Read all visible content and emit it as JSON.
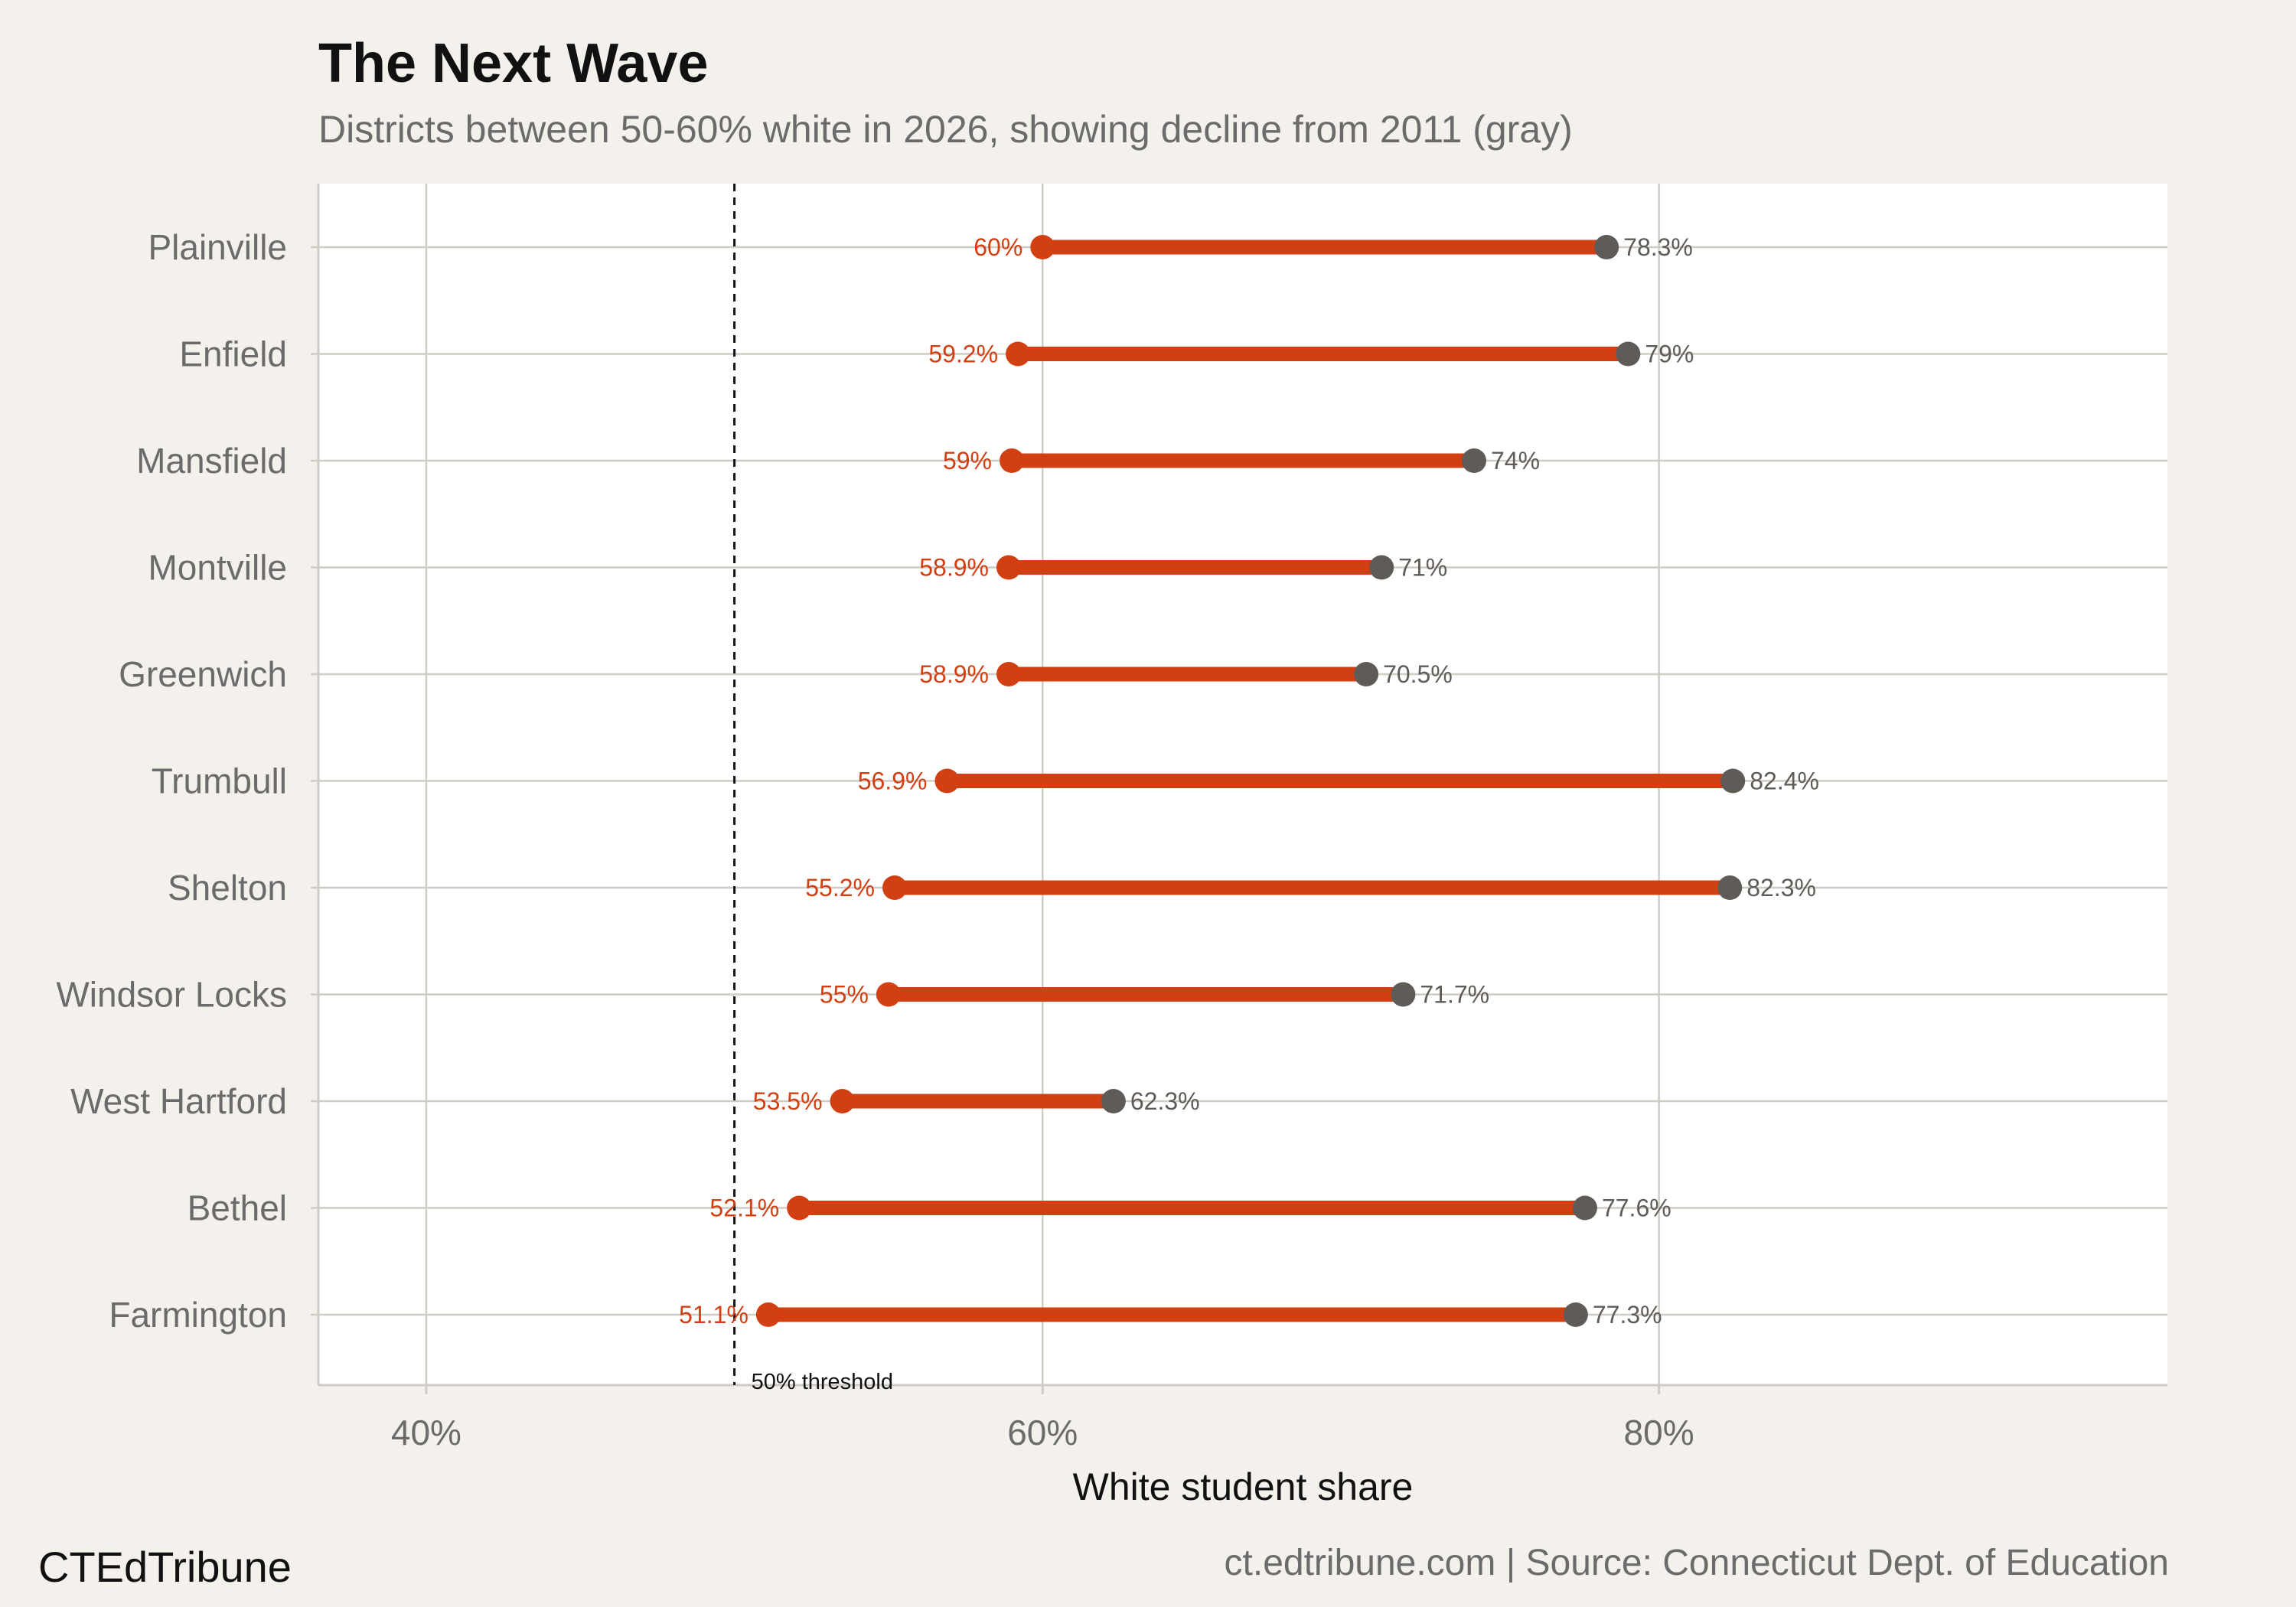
{
  "header": {
    "title": "The Next Wave",
    "subtitle": "Districts between 50-60% white in 2026, showing decline from 2011 (gray)"
  },
  "footer": {
    "brand": "CTEdTribune",
    "source": "ct.edtribune.com | Source: Connecticut Dept. of Education"
  },
  "colors": {
    "background": "#f4f1ec",
    "panel": "#ffffff",
    "value_2026": "#d23f12",
    "value_2011": "#5f5b57",
    "gridline": "#cfccc6"
  },
  "chart_data": {
    "type": "dumbbell",
    "xlabel": "White student share",
    "xlim": [
      36.5,
      96.5
    ],
    "x_ticks": [
      40,
      60,
      80
    ],
    "x_tick_labels": [
      "40%",
      "60%",
      "80%"
    ],
    "grid": true,
    "reference_line": {
      "x": 50,
      "label": "50% threshold"
    },
    "series": [
      {
        "key": "2026",
        "label_color": "#d23f12"
      },
      {
        "key": "2011",
        "label_color": "#5f5b57"
      }
    ],
    "districts": [
      {
        "name": "Plainville",
        "v2026": 60.0,
        "v2011": 78.3,
        "label2026": "60%",
        "label2011": "78.3%"
      },
      {
        "name": "Enfield",
        "v2026": 59.2,
        "v2011": 79.0,
        "label2026": "59.2%",
        "label2011": "79%"
      },
      {
        "name": "Mansfield",
        "v2026": 59.0,
        "v2011": 74.0,
        "label2026": "59%",
        "label2011": "74%"
      },
      {
        "name": "Montville",
        "v2026": 58.9,
        "v2011": 71.0,
        "label2026": "58.9%",
        "label2011": "71%"
      },
      {
        "name": "Greenwich",
        "v2026": 58.9,
        "v2011": 70.5,
        "label2026": "58.9%",
        "label2011": "70.5%"
      },
      {
        "name": "Trumbull",
        "v2026": 56.9,
        "v2011": 82.4,
        "label2026": "56.9%",
        "label2011": "82.4%"
      },
      {
        "name": "Shelton",
        "v2026": 55.2,
        "v2011": 82.3,
        "label2026": "55.2%",
        "label2011": "82.3%"
      },
      {
        "name": "Windsor Locks",
        "v2026": 55.0,
        "v2011": 71.7,
        "label2026": "55%",
        "label2011": "71.7%"
      },
      {
        "name": "West Hartford",
        "v2026": 53.5,
        "v2011": 62.3,
        "label2026": "53.5%",
        "label2011": "62.3%"
      },
      {
        "name": "Bethel",
        "v2026": 52.1,
        "v2011": 77.6,
        "label2026": "52.1%",
        "label2011": "77.6%"
      },
      {
        "name": "Farmington",
        "v2026": 51.1,
        "v2011": 77.3,
        "label2026": "51.1%",
        "label2011": "77.3%"
      }
    ]
  }
}
